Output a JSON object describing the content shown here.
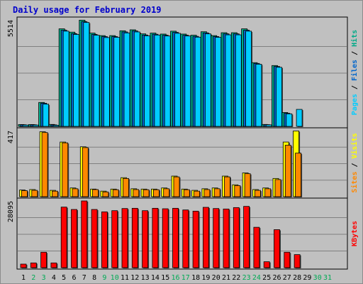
{
  "chart_data": {
    "type": "bar",
    "title": "Daily usage for February 2019",
    "categories": [
      "1",
      "2",
      "3",
      "4",
      "5",
      "6",
      "7",
      "8",
      "9",
      "10",
      "11",
      "12",
      "13",
      "14",
      "15",
      "16",
      "17",
      "18",
      "19",
      "20",
      "21",
      "22",
      "23",
      "24",
      "25",
      "26",
      "27",
      "28",
      "29",
      "30",
      "31"
    ],
    "weekend_days": [
      "2",
      "3",
      "9",
      "10",
      "16",
      "17",
      "23",
      "24",
      "30",
      "31"
    ],
    "panels": [
      {
        "name": "hits-files-pages",
        "max_label": "5514",
        "ylim": [
          0,
          5514
        ],
        "right_label_parts": [
          {
            "text": "Pages",
            "color": "#00ccff"
          },
          {
            "text": " / ",
            "color": "#000000"
          },
          {
            "text": "Files",
            "color": "#0066cc"
          },
          {
            "text": " / ",
            "color": "#000000"
          },
          {
            "text": "Hits",
            "color": "#00aa88"
          }
        ],
        "series": [
          {
            "name": "Hits",
            "color": "#00aa88",
            "values": [
              95,
              95,
              1240,
              100,
              5050,
              4880,
              5500,
              4830,
              4700,
              4700,
              4950,
              5000,
              4790,
              4830,
              4780,
              4930,
              4780,
              4720,
              4900,
              4700,
              4850,
              4850,
              5050,
              3300,
              100,
              3150,
              720,
              0,
              0,
              0,
              0
            ]
          },
          {
            "name": "Files",
            "color": "#0066cc",
            "values": [
              85,
              85,
              1200,
              80,
              4980,
              4800,
              5420,
              4760,
              4650,
              4650,
              4890,
              4940,
              4730,
              4770,
              4720,
              4870,
              4720,
              4660,
              4840,
              4650,
              4790,
              4790,
              4980,
              3260,
              90,
              3100,
              680,
              0,
              0,
              0,
              0
            ]
          },
          {
            "name": "Pages",
            "color": "#00ccff",
            "values": [
              70,
              70,
              1150,
              60,
              4930,
              4760,
              5380,
              4720,
              4600,
              4610,
              4840,
              4890,
              4690,
              4730,
              4680,
              4820,
              4680,
              4620,
              4790,
              4610,
              4740,
              4740,
              4930,
              3220,
              80,
              3060,
              650,
              880,
              0,
              0,
              0
            ]
          }
        ]
      },
      {
        "name": "visits-sites",
        "max_label": "417",
        "ylim": [
          0,
          417
        ],
        "right_label_parts": [
          {
            "text": "Sites",
            "color": "#ff8800"
          },
          {
            "text": " / ",
            "color": "#000000"
          },
          {
            "text": "Visits",
            "color": "#ffff00"
          }
        ],
        "series": [
          {
            "name": "Visits",
            "color": "#ffff00",
            "values": [
              42,
              45,
              410,
              40,
              345,
              55,
              315,
              48,
              35,
              48,
              120,
              50,
              48,
              48,
              55,
              130,
              48,
              40,
              50,
              55,
              130,
              75,
              150,
              45,
              55,
              115,
              345,
              415,
              0,
              0,
              0
            ]
          },
          {
            "name": "Sites",
            "color": "#ff8800",
            "values": [
              38,
              40,
              405,
              35,
              340,
              50,
              310,
              45,
              30,
              44,
              115,
              45,
              44,
              44,
              50,
              125,
              44,
              35,
              45,
              50,
              125,
              70,
              145,
              40,
              50,
              108,
              325,
              275,
              0,
              0,
              0
            ]
          }
        ]
      },
      {
        "name": "kbytes",
        "max_label": "28095",
        "ylim": [
          0,
          28095
        ],
        "right_label_parts": [
          {
            "text": "KBytes",
            "color": "#ff0000"
          }
        ],
        "series": [
          {
            "name": "KBytes",
            "color": "#ff0000",
            "values": [
              1500,
              2000,
              6500,
              2000,
              25500,
              24500,
              28095,
              24500,
              23500,
              24000,
              24900,
              25000,
              24000,
              25000,
              24800,
              25000,
              24300,
              23800,
              25400,
              24900,
              24700,
              25300,
              25800,
              17000,
              2500,
              16000,
              6500,
              5500,
              0,
              0,
              0
            ]
          }
        ]
      }
    ]
  }
}
